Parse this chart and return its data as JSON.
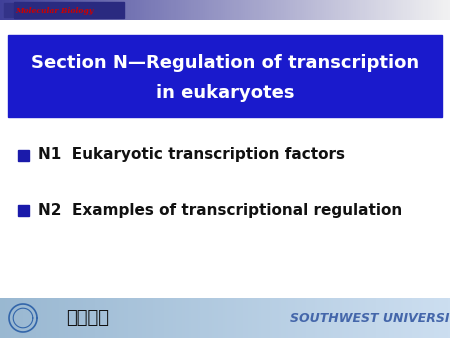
{
  "bg_color": "#ffffff",
  "header_text": "Molecular Biology",
  "header_text_color": "#cc0000",
  "title_box_color": "#1a1acc",
  "title_line1": "Section N—Regulation of transcription",
  "title_line2": "in eukaryotes",
  "title_text_color": "#ffffff",
  "bullet_color": "#1a1aaa",
  "bullet_items": [
    "N1  Eukaryotic transcription factors",
    "N2  Examples of transcriptional regulation"
  ],
  "bullet_text_color": "#111111",
  "footer_bg_left": "#a8c4e0",
  "footer_bg_right": "#c8ddf0",
  "footer_text": "SOUTHWEST UNIVERSITY",
  "footer_text_color": "#4466aa",
  "header_dark_color": "#2a2a80",
  "square_color": "#333388"
}
